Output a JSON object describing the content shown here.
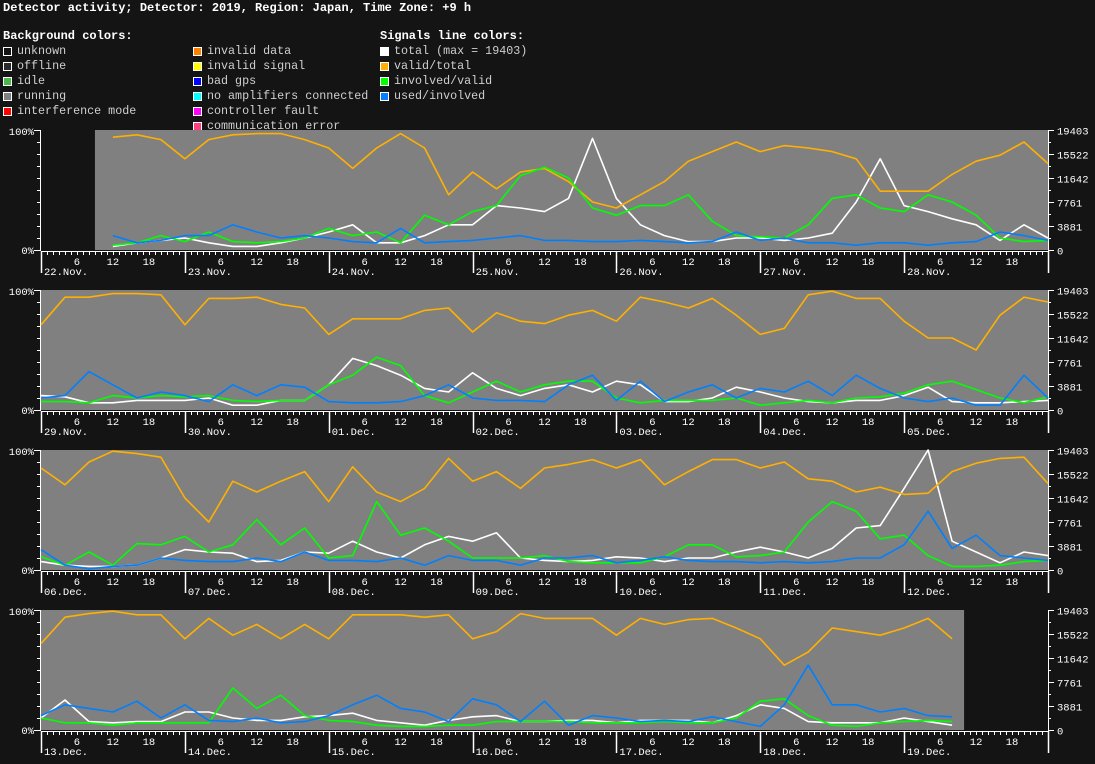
{
  "title": "Detector activity; Detector: 2019, Region: Japan, Time Zone: +9 h",
  "legend": {
    "background_header": "Background colors:",
    "background_items": [
      {
        "label": "unknown",
        "color": "#141414",
        "border": "#ffffff"
      },
      {
        "label": "offline",
        "color": "#2a2a2a",
        "border": "#ffffff"
      },
      {
        "label": "idle",
        "color": "#4cb84c",
        "border": "#ffffff"
      },
      {
        "label": "running",
        "color": "#808080",
        "border": "#ffffff"
      },
      {
        "label": "interference mode",
        "color": "#ff0000",
        "border": "#ffffff"
      }
    ],
    "background_items_2": [
      {
        "label": "invalid data",
        "color": "#ff8000",
        "border": "#ffffff"
      },
      {
        "label": "invalid signal",
        "color": "#ffff00",
        "border": "#ffffff"
      },
      {
        "label": "bad gps",
        "color": "#0000ff",
        "border": "#ffffff"
      },
      {
        "label": "no amplifiers connected",
        "color": "#00ffff",
        "border": "#ffffff"
      },
      {
        "label": "controller fault",
        "color": "#ff00ff",
        "border": "#ffffff"
      },
      {
        "label": "communication error",
        "color": "#ff4080",
        "border": "#ffffff"
      }
    ],
    "signals_header": "Signals line colors:",
    "signal_items": [
      {
        "label": "total (max = 19403)",
        "color": "#ffffff",
        "border": "#ffffff"
      },
      {
        "label": "valid/total",
        "color": "#ffb000",
        "border": "#ffffff"
      },
      {
        "label": "involved/valid",
        "color": "#00ff00",
        "border": "#ffffff"
      },
      {
        "label": "used/involved",
        "color": "#0080ff",
        "border": "#ffffff"
      }
    ]
  },
  "chart_data": {
    "type": "line",
    "x_step_hours": 4,
    "hour_tick_labels": [
      "6",
      "12",
      "18"
    ],
    "left_axis": {
      "labels": [
        "100%",
        "0%"
      ],
      "ylim": [
        0,
        100
      ],
      "unit": "%"
    },
    "right_axis": {
      "labels": [
        "19403",
        "15522",
        "11642",
        "7761",
        "3881",
        "0"
      ],
      "ylim": [
        0,
        19403
      ]
    },
    "colors": {
      "background": "#141414",
      "running": "#808080",
      "total": "#ffffff",
      "valid_total": "#ffb000",
      "involved_valid": "#00ff00",
      "used_involved": "#0080ff"
    },
    "rows": [
      {
        "days": [
          "22.Nov.",
          "23.Nov.",
          "24.Nov.",
          "25.Nov.",
          "26.Nov.",
          "27.Nov.",
          "28.Nov."
        ],
        "running_hours": [
          9,
          168
        ],
        "total": [
          null,
          null,
          null,
          580,
          1160,
          1550,
          1940,
          1160,
          580,
          580,
          1160,
          1940,
          2910,
          4070,
          1160,
          1160,
          2330,
          4070,
          4070,
          7180,
          6790,
          6210,
          8340,
          18050,
          8340,
          4070,
          2330,
          1360,
          1360,
          1940,
          1940,
          1550,
          1940,
          2720,
          7760,
          14750,
          7180,
          6210,
          5040,
          4070,
          1550,
          4070,
          1940
        ],
        "valid_total": [
          null,
          null,
          null,
          94,
          96,
          92,
          76,
          92,
          96,
          97,
          97,
          92,
          85,
          68,
          85,
          97,
          85,
          46,
          65,
          51,
          65,
          68,
          57,
          40,
          35,
          46,
          57,
          74,
          82,
          90,
          82,
          87,
          85,
          82,
          76,
          49,
          49,
          49,
          63,
          74,
          79,
          90,
          72
        ],
        "involved_valid": [
          null,
          null,
          null,
          4,
          6,
          12,
          7,
          15,
          7,
          6,
          7,
          10,
          18,
          12,
          15,
          6,
          29,
          21,
          32,
          37,
          62,
          69,
          60,
          35,
          29,
          37,
          37,
          46,
          24,
          12,
          11,
          10,
          21,
          43,
          46,
          35,
          32,
          46,
          40,
          29,
          10,
          7,
          8
        ],
        "used_involved": [
          null,
          null,
          null,
          12,
          6,
          8,
          12,
          12,
          21,
          15,
          10,
          12,
          10,
          7,
          6,
          18,
          6,
          7,
          8,
          10,
          12,
          8,
          8,
          7,
          7,
          8,
          7,
          6,
          7,
          15,
          8,
          10,
          6,
          6,
          4,
          6,
          6,
          4,
          6,
          7,
          15,
          12,
          8
        ]
      },
      {
        "days": [
          "29.Nov.",
          "30.Nov.",
          "01.Dec.",
          "02.Dec.",
          "03.Dec.",
          "04.Dec.",
          "05.Dec."
        ],
        "running_hours": [
          0,
          168
        ],
        "total": [
          2330,
          2130,
          1160,
          1160,
          1550,
          1550,
          1550,
          1940,
          780,
          780,
          1550,
          1550,
          4070,
          8340,
          7180,
          5630,
          3490,
          2910,
          6010,
          3490,
          2330,
          3490,
          4070,
          2910,
          4660,
          4070,
          1360,
          1360,
          1940,
          3690,
          2910,
          1940,
          1360,
          1160,
          1550,
          1550,
          2330,
          3690,
          1360,
          1160,
          1160,
          1360,
          1550
        ],
        "valid_total": [
          71,
          94,
          94,
          97,
          97,
          96,
          71,
          93,
          93,
          94,
          88,
          85,
          63,
          76,
          76,
          76,
          83,
          85,
          65,
          81,
          74,
          72,
          79,
          83,
          74,
          94,
          90,
          85,
          93,
          79,
          63,
          68,
          96,
          99,
          93,
          93,
          74,
          60,
          60,
          50,
          79,
          94,
          90
        ],
        "involved_valid": [
          7,
          7,
          6,
          12,
          10,
          12,
          11,
          12,
          8,
          7,
          8,
          8,
          21,
          29,
          44,
          37,
          12,
          6,
          15,
          24,
          15,
          21,
          24,
          24,
          10,
          6,
          8,
          8,
          8,
          10,
          4,
          6,
          8,
          6,
          10,
          11,
          14,
          21,
          24,
          17,
          10,
          6,
          11
        ],
        "used_involved": [
          10,
          12,
          32,
          21,
          10,
          15,
          12,
          7,
          21,
          12,
          21,
          19,
          7,
          6,
          6,
          7,
          12,
          21,
          10,
          8,
          8,
          7,
          21,
          29,
          8,
          24,
          7,
          15,
          21,
          10,
          18,
          15,
          24,
          12,
          29,
          18,
          10,
          7,
          10,
          4,
          4,
          29,
          10
        ]
      },
      {
        "days": [
          "06.Dec.",
          "07.Dec.",
          "08.Dec.",
          "09.Dec.",
          "10.Dec.",
          "11.Dec.",
          "12.Dec."
        ],
        "running_hours": [
          0,
          168
        ],
        "total": [
          1360,
          780,
          580,
          580,
          780,
          1940,
          3300,
          2910,
          2720,
          1360,
          1550,
          2910,
          2720,
          4660,
          2910,
          1940,
          4070,
          5430,
          4660,
          6010,
          1940,
          1550,
          1360,
          1550,
          2130,
          1940,
          1360,
          1940,
          1940,
          2910,
          3690,
          2910,
          1940,
          3490,
          6790,
          7180,
          13190,
          19400,
          4660,
          2910,
          1160,
          2910,
          2330
        ],
        "valid_total": [
          85,
          71,
          90,
          99,
          97,
          94,
          60,
          40,
          74,
          65,
          74,
          82,
          57,
          86,
          65,
          57,
          68,
          93,
          74,
          82,
          68,
          85,
          88,
          92,
          85,
          92,
          71,
          82,
          92,
          92,
          85,
          90,
          76,
          74,
          65,
          69,
          63,
          64,
          82,
          89,
          93,
          94,
          72
        ],
        "involved_valid": [
          11,
          4,
          15,
          4,
          22,
          21,
          28,
          15,
          21,
          42,
          21,
          35,
          10,
          12,
          57,
          29,
          35,
          24,
          10,
          10,
          10,
          12,
          7,
          6,
          6,
          6,
          11,
          21,
          21,
          11,
          12,
          15,
          40,
          57,
          49,
          26,
          29,
          12,
          3,
          3,
          4,
          7,
          8
        ],
        "used_involved": [
          17,
          4,
          1,
          3,
          4,
          10,
          8,
          7,
          7,
          10,
          7,
          15,
          8,
          8,
          7,
          10,
          4,
          12,
          8,
          8,
          4,
          10,
          10,
          12,
          6,
          8,
          11,
          8,
          7,
          7,
          6,
          7,
          6,
          7,
          10,
          10,
          21,
          49,
          18,
          29,
          12,
          10,
          8
        ]
      },
      {
        "days": [
          "13.Dec.",
          "14.Dec.",
          "15.Dec.",
          "16.Dec.",
          "17.Dec.",
          "18.Dec.",
          "19.Dec."
        ],
        "running_hours": [
          0,
          154
        ],
        "total": [
          1940,
          4850,
          1360,
          1160,
          1360,
          1360,
          2910,
          2910,
          1940,
          1550,
          1550,
          2130,
          2330,
          2720,
          1550,
          1160,
          780,
          1550,
          2130,
          2330,
          1360,
          1360,
          1550,
          1550,
          1160,
          1550,
          1550,
          1550,
          1160,
          2330,
          4070,
          3490,
          1360,
          1160,
          1160,
          1160,
          1940,
          1360,
          780
        ],
        "valid_total": [
          72,
          94,
          97,
          99,
          96,
          96,
          76,
          93,
          79,
          88,
          76,
          88,
          76,
          96,
          96,
          96,
          94,
          96,
          76,
          82,
          97,
          93,
          93,
          93,
          79,
          93,
          88,
          92,
          93,
          85,
          76,
          54,
          65,
          85,
          82,
          79,
          85,
          93,
          76
        ],
        "involved_valid": [
          10,
          6,
          6,
          4,
          6,
          6,
          6,
          6,
          35,
          18,
          29,
          12,
          8,
          7,
          4,
          3,
          3,
          4,
          4,
          7,
          7,
          7,
          7,
          6,
          6,
          6,
          7,
          6,
          6,
          10,
          24,
          26,
          12,
          4,
          3,
          6,
          7,
          8,
          7
        ],
        "used_involved": [
          12,
          21,
          18,
          15,
          24,
          10,
          21,
          8,
          7,
          10,
          6,
          7,
          12,
          21,
          29,
          18,
          15,
          7,
          26,
          21,
          7,
          24,
          4,
          12,
          10,
          7,
          8,
          7,
          11,
          7,
          3,
          21,
          54,
          21,
          21,
          15,
          18,
          12,
          11
        ]
      }
    ]
  }
}
